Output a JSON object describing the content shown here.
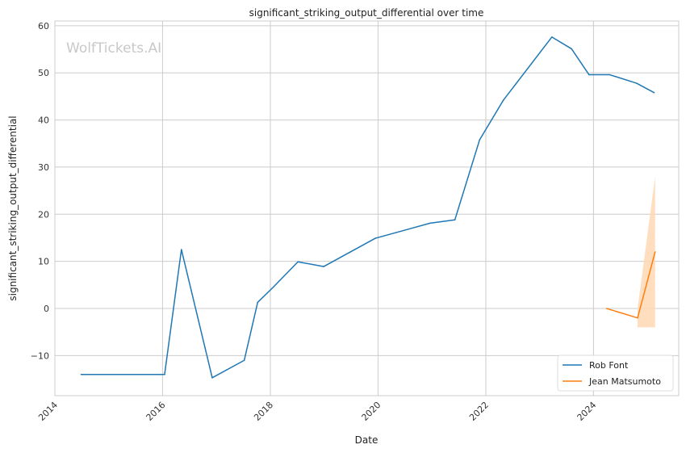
{
  "chart_data": {
    "type": "line",
    "title": "significant_striking_output_differential over time",
    "xlabel": "Date",
    "ylabel": "significant_striking_output_differential",
    "watermark": "WolfTickets.AI",
    "x_ticks": [
      "2014",
      "2016",
      "2018",
      "2020",
      "2022",
      "2024"
    ],
    "y_ticks": [
      "60",
      "50",
      "40",
      "30",
      "20",
      "10",
      "0",
      "−10"
    ],
    "xlim": [
      "2014-01-01",
      "2025-08-01"
    ],
    "ylim": [
      -18.5,
      61
    ],
    "grid": true,
    "legend_position": "lower-right",
    "series": [
      {
        "name": "Rob Font",
        "color": "#1f77b4",
        "points": [
          {
            "x": "2014-06-28",
            "y": -14
          },
          {
            "x": "2016-01-15",
            "y": -14
          },
          {
            "x": "2016-05-08",
            "y": 12.5
          },
          {
            "x": "2016-12-03",
            "y": -14.7
          },
          {
            "x": "2017-07-08",
            "y": -11
          },
          {
            "x": "2017-10-07",
            "y": 1.3
          },
          {
            "x": "2018-01-20",
            "y": 4.5
          },
          {
            "x": "2018-07-07",
            "y": 9.9
          },
          {
            "x": "2018-12-29",
            "y": 8.9
          },
          {
            "x": "2019-12-14",
            "y": 14.9
          },
          {
            "x": "2020-12-19",
            "y": 18.1
          },
          {
            "x": "2021-06-05",
            "y": 18.8
          },
          {
            "x": "2021-11-20",
            "y": 35.8
          },
          {
            "x": "2022-04-30",
            "y": 44.2
          },
          {
            "x": "2023-03-25",
            "y": 57.6
          },
          {
            "x": "2023-08-05",
            "y": 55.1
          },
          {
            "x": "2023-12-02",
            "y": 49.6
          },
          {
            "x": "2024-04-20",
            "y": 49.6
          },
          {
            "x": "2024-10-19",
            "y": 47.8
          },
          {
            "x": "2025-02-15",
            "y": 45.8
          }
        ]
      },
      {
        "name": "Jean Matsumoto",
        "color": "#ff7f0e",
        "band_color": "#ffd8b5",
        "points": [
          {
            "x": "2024-03-30",
            "y": 0
          },
          {
            "x": "2024-10-26",
            "y": -2
          },
          {
            "x": "2025-02-22",
            "y": 12
          }
        ],
        "band": [
          {
            "x": "2024-10-26",
            "lo": -4,
            "hi": 0
          },
          {
            "x": "2025-02-22",
            "lo": -4,
            "hi": 28
          }
        ]
      }
    ]
  }
}
